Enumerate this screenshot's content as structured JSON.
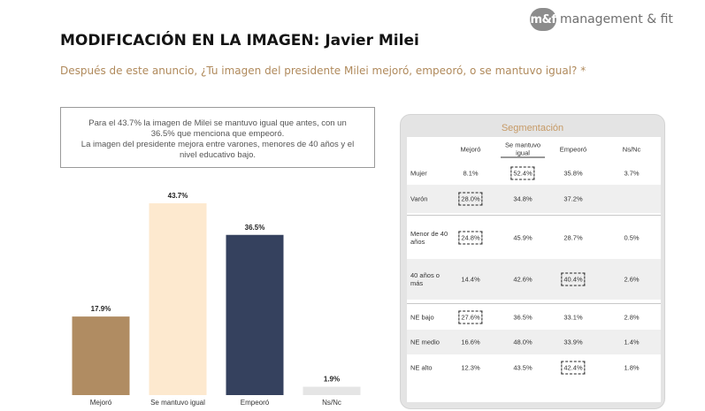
{
  "brand": {
    "mark": "m&f",
    "name": "management & fit"
  },
  "title": "MODIFICACIÓN EN LA IMAGEN: Javier Milei",
  "question": "Después de este anuncio, ¿Tu imagen del presidente Milei mejoró, empeoró, o se mantuvo igual? *",
  "note_lines": [
    "Para el 43.7% la imagen de Milei se mantuvo igual que antes, con un",
    "36.5% que menciona que empeoró.",
    "La imagen del presidente mejora entre varones, menores de 40 años y el",
    "nivel educativo bajo."
  ],
  "chart_data": [
    {
      "type": "bar",
      "categories": [
        "Mejoró",
        "Se mantuvo igual",
        "Empeoró",
        "Ns/Nc"
      ],
      "values": [
        17.9,
        43.7,
        36.5,
        1.9
      ],
      "value_labels": [
        "17.9%",
        "43.7%",
        "36.5%",
        "1.9%"
      ],
      "colors": [
        "#b08c62",
        "#fde9cf",
        "#35415e",
        "#e5e5e5"
      ],
      "unit": "%",
      "ylim": [
        0,
        43.7
      ],
      "grid": false
    },
    {
      "type": "table",
      "title": "Segmentación",
      "columns": [
        "",
        "Mejoró",
        "Se mantuvo igual",
        "Empeoró",
        "Ns/Nc"
      ],
      "rows": [
        {
          "label": "Mujer",
          "values": [
            "8.1%",
            "52.4%",
            "35.8%",
            "3.7%"
          ],
          "highlight": 1
        },
        {
          "label": "Varón",
          "values": [
            "28.0%",
            "34.8%",
            "37.2%",
            ""
          ],
          "highlight": 0
        },
        {
          "label": "Menor de 40 años",
          "values": [
            "24.8%",
            "45.9%",
            "28.7%",
            "0.5%"
          ],
          "highlight": 0
        },
        {
          "label": "40 años o más",
          "values": [
            "14.4%",
            "42.6%",
            "40.4%",
            "2.6%"
          ],
          "highlight": 2
        },
        {
          "label": "NE bajo",
          "values": [
            "27.6%",
            "36.5%",
            "33.1%",
            "2.8%"
          ],
          "highlight": 0
        },
        {
          "label": "NE medio",
          "values": [
            "16.6%",
            "48.0%",
            "33.9%",
            "1.4%"
          ],
          "highlight": -1
        },
        {
          "label": "NE alto",
          "values": [
            "12.3%",
            "43.5%",
            "42.4%",
            "1.8%"
          ],
          "highlight": 2
        }
      ]
    }
  ]
}
